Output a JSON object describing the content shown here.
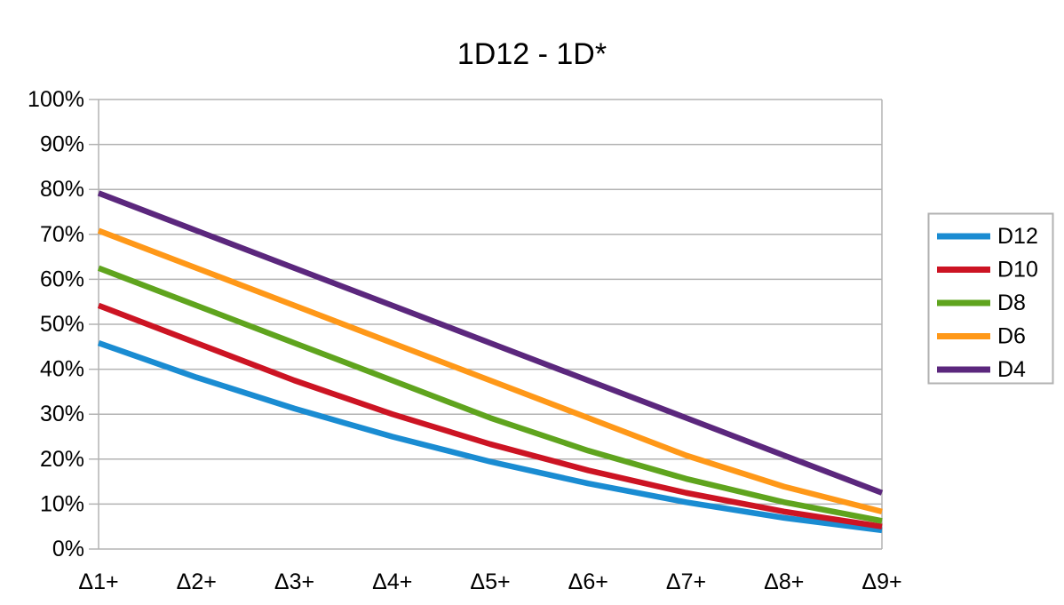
{
  "chart_data": {
    "type": "line",
    "title": "1D12 - 1D*",
    "xlabel": "",
    "ylabel": "",
    "categories": [
      "Δ1+",
      "Δ2+",
      "Δ3+",
      "Δ4+",
      "Δ5+",
      "Δ6+",
      "Δ7+",
      "Δ8+",
      "Δ9+"
    ],
    "series": [
      {
        "name": "D12",
        "color": "#1A8CD2",
        "values": [
          45.83,
          38.19,
          31.25,
          25.0,
          19.44,
          14.58,
          10.42,
          6.94,
          4.17
        ]
      },
      {
        "name": "D10",
        "color": "#CC1423",
        "values": [
          54.17,
          45.83,
          37.5,
          30.0,
          23.33,
          17.5,
          12.5,
          8.33,
          5.0
        ]
      },
      {
        "name": "D8",
        "color": "#5FA41E",
        "values": [
          62.5,
          54.17,
          45.83,
          37.5,
          29.17,
          21.88,
          15.63,
          10.42,
          6.25
        ]
      },
      {
        "name": "D6",
        "color": "#FF9818",
        "values": [
          70.83,
          62.5,
          54.17,
          45.83,
          37.5,
          29.17,
          20.83,
          13.89,
          8.33
        ]
      },
      {
        "name": "D4",
        "color": "#5B277D",
        "values": [
          79.17,
          70.83,
          62.5,
          54.17,
          45.83,
          37.5,
          29.17,
          20.83,
          12.5
        ]
      }
    ],
    "ylim": [
      0,
      100
    ],
    "y_tick_step": 10,
    "y_tick_labels": [
      "0%",
      "10%",
      "20%",
      "30%",
      "40%",
      "50%",
      "60%",
      "70%",
      "80%",
      "90%",
      "100%"
    ],
    "grid": "horizontal",
    "grid_color": "#b3b3b3",
    "axis_color": "#b3b3b3",
    "legend_position": "right",
    "legend_border_color": "#b2b2b2",
    "background_color": "#ffffff",
    "text_color": "#000000"
  }
}
